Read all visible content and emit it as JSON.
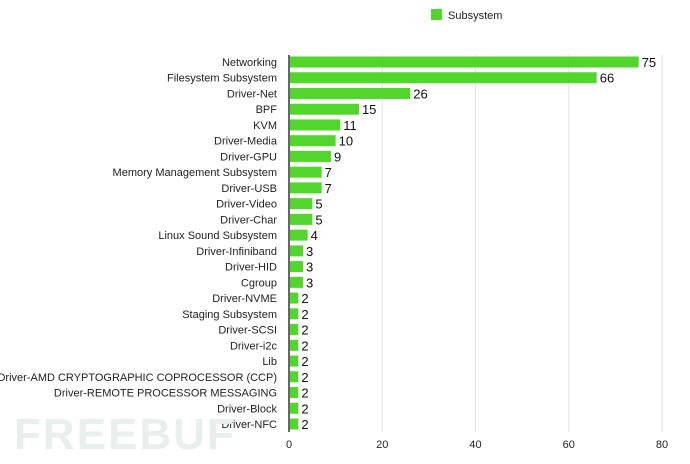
{
  "chart_data": {
    "type": "bar",
    "orientation": "horizontal",
    "categories": [
      "Networking",
      "Filesystem Subsystem",
      "Driver-Net",
      "BPF",
      "KVM",
      "Driver-Media",
      "Driver-GPU",
      "Memory Management Subsystem",
      "Driver-USB",
      "Driver-Video",
      "Driver-Char",
      "Linux Sound Subsystem",
      "Driver-Infiniband",
      "Driver-HID",
      "Cgroup",
      "Driver-NVME",
      "Staging Subsystem",
      "Driver-SCSI",
      "Driver-i2c",
      "Lib",
      "Driver-AMD CRYPTOGRAPHIC COPROCESSOR (CCP)",
      "Driver-REMOTE PROCESSOR MESSAGING",
      "Driver-Block",
      "Driver-NFC"
    ],
    "series": [
      {
        "name": "Subsystem",
        "values": [
          75,
          66,
          26,
          15,
          11,
          10,
          9,
          7,
          7,
          5,
          5,
          4,
          3,
          3,
          3,
          2,
          2,
          2,
          2,
          2,
          2,
          2,
          2,
          2
        ],
        "color": "#52d62c"
      }
    ],
    "xlim": [
      0,
      80
    ],
    "xticks": [
      "0",
      "20",
      "40",
      "60",
      "80"
    ],
    "grid": true,
    "legend": "top-center",
    "data_labels": true
  },
  "watermark": "FREEBUF"
}
